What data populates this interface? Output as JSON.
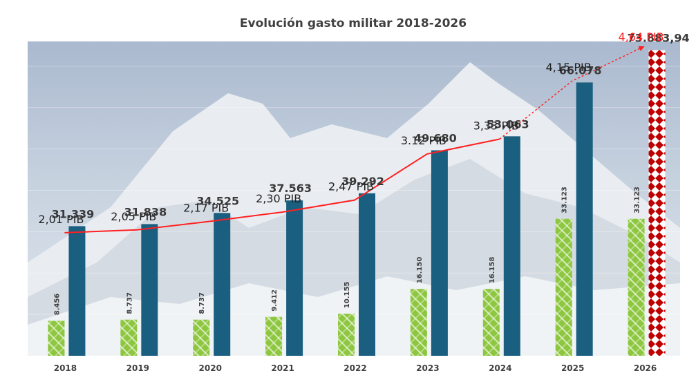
{
  "chart_data": {
    "type": "bar",
    "title": "Evolución gasto militar 2018-2026",
    "categories": [
      "2018",
      "2019",
      "2020",
      "2021",
      "2022",
      "2023",
      "2024",
      "2025",
      "2026"
    ],
    "series": [
      {
        "name": "green",
        "values": [
          8456,
          8737,
          8737,
          9412,
          10155,
          16150,
          16158,
          33123,
          33123
        ],
        "labels": [
          "8.456",
          "8.737",
          "8.737",
          "9.412",
          "10.155",
          "16.150",
          "16.158",
          "33.123",
          "33.123"
        ],
        "color": "#8dc63f"
      },
      {
        "name": "blue",
        "values": [
          31339,
          31838,
          34525,
          37563,
          39292,
          49680,
          53063,
          66078,
          73883.94
        ],
        "labels": [
          "31.339",
          "31.838",
          "34.525",
          "37.563",
          "39.292",
          "49.680",
          "53.063",
          "66.078",
          "73.883,94"
        ],
        "color": "#1a5e80",
        "last_color": "#c00000"
      }
    ],
    "line": {
      "name": "PIB",
      "values": [
        2.01,
        2.05,
        2.17,
        2.3,
        2.47,
        3.12,
        3.33,
        4.15,
        4.64
      ],
      "labels": [
        "2,01 PIB",
        "2,05 PIB",
        "2,17 PIB",
        "2,30 PIB",
        "2,47 PIB",
        "3.12 PIB",
        "3,33 PIB",
        "4,15 PIB",
        "4,64 PIB"
      ],
      "color": "#ff2020",
      "dashed_from_index": 6
    },
    "ylim": [
      0,
      76000
    ],
    "xlabel": "",
    "ylabel": "",
    "grid": true,
    "legend": "none"
  }
}
